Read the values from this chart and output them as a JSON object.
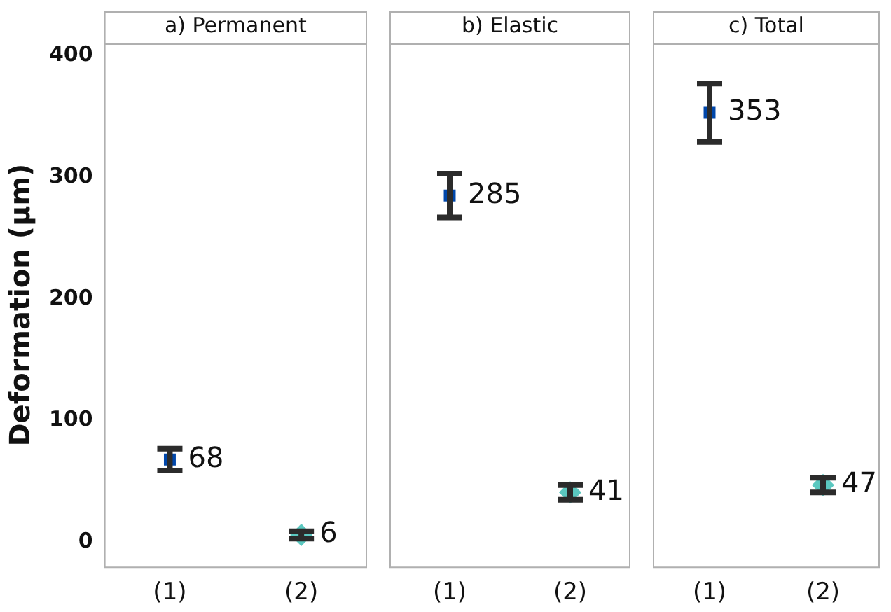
{
  "chart_data": [
    {
      "type": "scatter",
      "title": "a) Permanent",
      "ylabel": "Deformation (µm)",
      "categories": [
        "(1)",
        "(2)"
      ],
      "ylim": [
        -20,
        410
      ],
      "yticks": [
        0,
        100,
        200,
        300,
        400
      ],
      "grid": false,
      "data_labels": true,
      "series": [
        {
          "color": "#0047ab",
          "marker": "square",
          "values": [
            68,
            null
          ],
          "errors": [
            9,
            null
          ]
        },
        {
          "color": "#5bc8c0",
          "marker": "diamond",
          "values": [
            null,
            6
          ],
          "errors": [
            null,
            3
          ]
        }
      ]
    },
    {
      "type": "scatter",
      "title": "b) Elastic",
      "categories": [
        "(1)",
        "(2)"
      ],
      "ylim": [
        -20,
        410
      ],
      "yticks": [
        0,
        100,
        200,
        300,
        400
      ],
      "tick_labels": "x",
      "grid": false,
      "data_labels": true,
      "series": [
        {
          "color": "#0047ab",
          "marker": "square",
          "values": [
            285,
            null
          ],
          "errors": [
            18,
            null
          ]
        },
        {
          "color": "#5bc8c0",
          "marker": "diamond",
          "values": [
            null,
            41
          ],
          "errors": [
            null,
            6
          ]
        }
      ]
    },
    {
      "type": "scatter",
      "title": "c) Total",
      "categories": [
        "(1)",
        "(2)"
      ],
      "ylim": [
        -20,
        410
      ],
      "yticks": [
        0,
        100,
        200,
        300,
        400
      ],
      "tick_labels": "x",
      "grid": false,
      "data_labels": true,
      "series": [
        {
          "color": "#0047ab",
          "marker": "square",
          "values": [
            353,
            null
          ],
          "errors": [
            24,
            null
          ]
        },
        {
          "color": "#5bc8c0",
          "marker": "diamond",
          "values": [
            null,
            47
          ],
          "errors": [
            null,
            6
          ]
        }
      ]
    }
  ]
}
